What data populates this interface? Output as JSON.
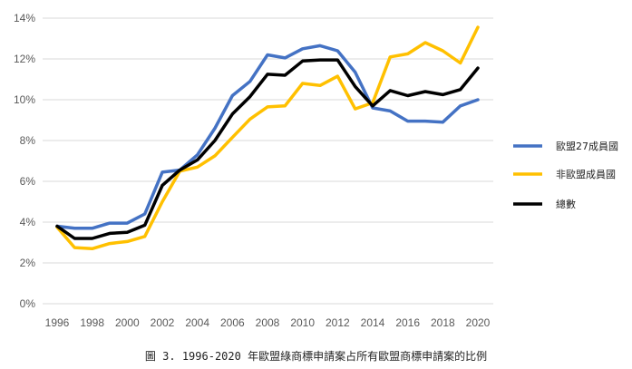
{
  "chart_data": {
    "type": "line",
    "caption": "圖 3. 1996-2020 年歐盟綠商標申請案占所有歐盟商標申請案的比例",
    "x": [
      1996,
      1997,
      1998,
      1999,
      2000,
      2001,
      2002,
      2003,
      2004,
      2005,
      2006,
      2007,
      2008,
      2009,
      2010,
      2011,
      2012,
      2013,
      2014,
      2015,
      2016,
      2017,
      2018,
      2019,
      2020
    ],
    "x_ticks": [
      "1996",
      "1998",
      "2000",
      "2002",
      "2004",
      "2006",
      "2008",
      "2010",
      "2012",
      "2014",
      "2016",
      "2018",
      "2020"
    ],
    "y_ticks": [
      "0%",
      "2%",
      "4%",
      "6%",
      "8%",
      "10%",
      "12%",
      "14%"
    ],
    "ylim": [
      0,
      14
    ],
    "grid": true,
    "legend_position": "right",
    "series": [
      {
        "name": "歐盟27成員國",
        "color": "#4472C4",
        "values": [
          3.8,
          3.7,
          3.7,
          3.95,
          3.95,
          4.4,
          6.45,
          6.55,
          7.3,
          8.6,
          10.2,
          10.9,
          12.2,
          12.05,
          12.5,
          12.65,
          12.4,
          11.35,
          9.6,
          9.45,
          8.95,
          8.95,
          8.9,
          9.7,
          10.0
        ]
      },
      {
        "name": "非歐盟成員國",
        "color": "#FFC000",
        "values": [
          3.75,
          2.75,
          2.7,
          2.95,
          3.05,
          3.3,
          5.0,
          6.5,
          6.7,
          7.25,
          8.15,
          9.05,
          9.65,
          9.7,
          10.8,
          10.7,
          11.15,
          9.55,
          9.85,
          12.1,
          12.25,
          12.8,
          12.4,
          11.8,
          13.55
        ]
      },
      {
        "name": "總數",
        "color": "#000000",
        "values": [
          3.8,
          3.2,
          3.2,
          3.45,
          3.5,
          3.85,
          5.8,
          6.55,
          7.05,
          8.0,
          9.3,
          10.15,
          11.25,
          11.2,
          11.9,
          11.95,
          11.95,
          10.65,
          9.7,
          10.45,
          10.2,
          10.4,
          10.25,
          10.5,
          11.55
        ]
      }
    ]
  }
}
